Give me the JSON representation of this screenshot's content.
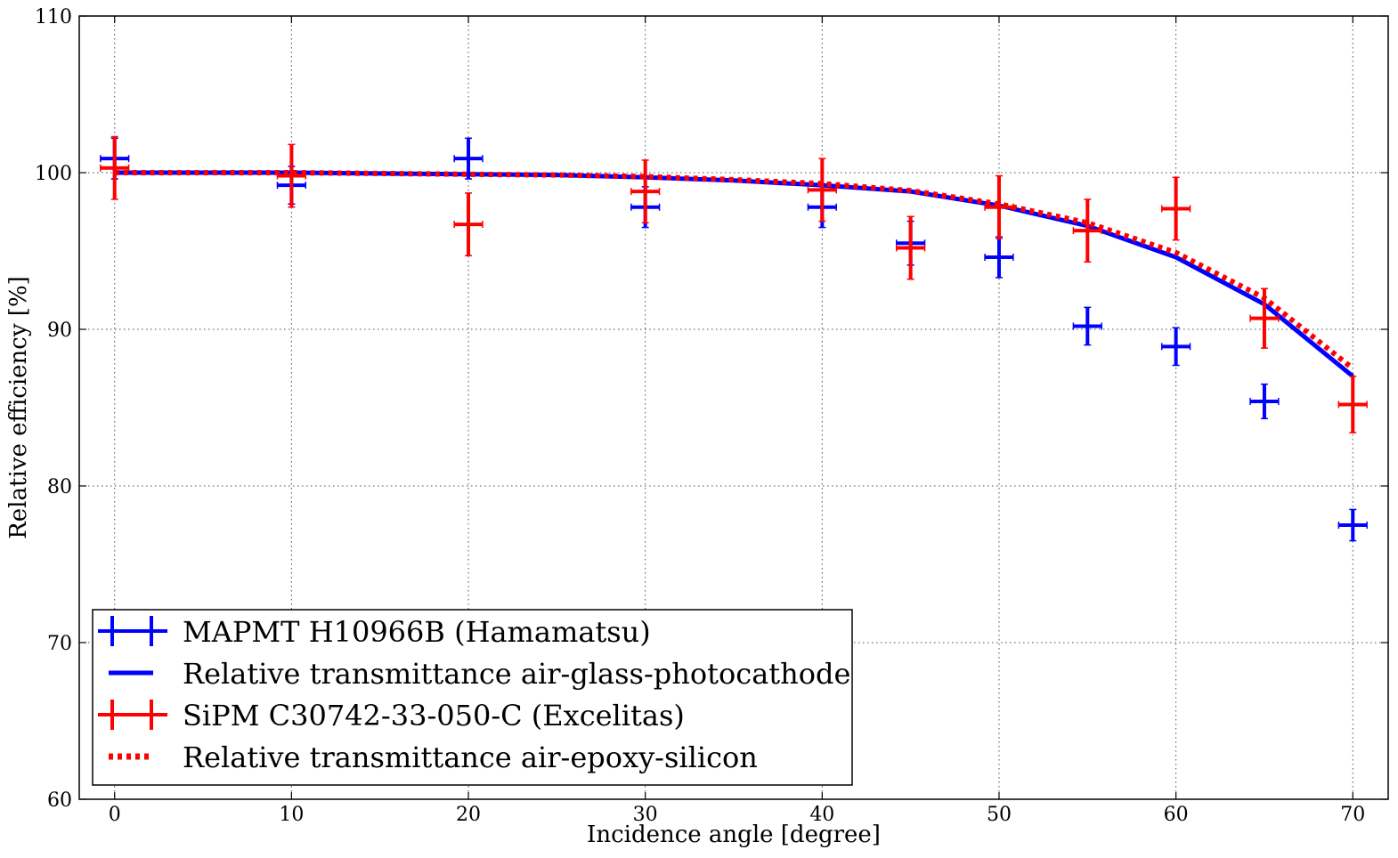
{
  "chart_data": {
    "type": "scatter",
    "title": "",
    "xlabel": "Incidence angle [degree]",
    "ylabel": "Relative efficiency [%]",
    "xlim": [
      -2,
      72
    ],
    "ylim": [
      60,
      110
    ],
    "xticks": [
      0,
      10,
      20,
      30,
      40,
      50,
      60,
      70
    ],
    "yticks": [
      60,
      70,
      80,
      90,
      100,
      110
    ],
    "grid": true,
    "legend_position": "bottom-left",
    "series": [
      {
        "name": "MAPMT H10966B (Hamamatsu)",
        "kind": "errorbar",
        "color": "#0000ff",
        "x": [
          0,
          10,
          20,
          30,
          40,
          45,
          50,
          55,
          60,
          65,
          70
        ],
        "y": [
          100.9,
          99.2,
          100.9,
          97.8,
          97.8,
          95.5,
          94.6,
          90.2,
          88.9,
          85.4,
          77.5
        ],
        "yerr": [
          1.3,
          1.2,
          1.3,
          1.3,
          1.3,
          1.4,
          1.3,
          1.2,
          1.2,
          1.1,
          1.0
        ],
        "xerr": [
          0.8,
          0.8,
          0.8,
          0.8,
          0.8,
          0.8,
          0.8,
          0.8,
          0.8,
          0.8,
          0.8
        ]
      },
      {
        "name": "Relative transmittance air-glass-photocathode",
        "kind": "line",
        "style": "solid",
        "color": "#0000ff",
        "x": [
          0,
          5,
          10,
          15,
          20,
          25,
          30,
          35,
          40,
          45,
          50,
          55,
          60,
          65,
          70
        ],
        "y": [
          100.0,
          100.0,
          100.0,
          99.95,
          99.9,
          99.85,
          99.7,
          99.5,
          99.2,
          98.8,
          97.9,
          96.6,
          94.6,
          91.6,
          87.0
        ]
      },
      {
        "name": "SiPM C30742-33-050-C (Excelitas)",
        "kind": "errorbar",
        "color": "#ff0000",
        "x": [
          0,
          10,
          20,
          30,
          40,
          45,
          50,
          55,
          60,
          65,
          70
        ],
        "y": [
          100.3,
          99.8,
          96.7,
          98.8,
          98.9,
          95.2,
          97.8,
          96.3,
          97.7,
          90.7,
          85.2
        ],
        "yerr": [
          2.0,
          2.0,
          2.0,
          2.0,
          2.0,
          2.0,
          2.0,
          2.0,
          2.0,
          1.9,
          1.8
        ],
        "xerr": [
          0.8,
          0.8,
          0.8,
          0.8,
          0.8,
          0.8,
          0.8,
          0.8,
          0.8,
          0.8,
          0.8
        ]
      },
      {
        "name": "Relative transmittance air-epoxy-silicon",
        "kind": "line",
        "style": "dotted",
        "color": "#ff0000",
        "x": [
          0,
          5,
          10,
          15,
          20,
          25,
          30,
          35,
          40,
          45,
          50,
          55,
          60,
          65,
          70
        ],
        "y": [
          100.0,
          100.0,
          100.0,
          99.95,
          99.9,
          99.85,
          99.75,
          99.55,
          99.3,
          98.85,
          98.0,
          96.8,
          94.9,
          92.0,
          87.5
        ]
      }
    ]
  }
}
